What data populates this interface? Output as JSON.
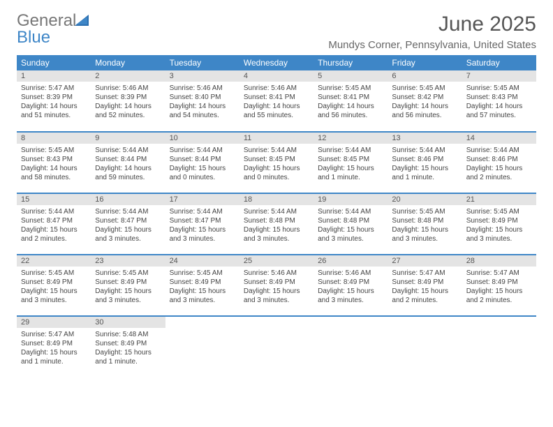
{
  "brand": {
    "part1": "General",
    "part2": "Blue"
  },
  "title": "June 2025",
  "location": "Mundys Corner, Pennsylvania, United States",
  "colors": {
    "header_bg": "#3e86c7",
    "header_fg": "#ffffff",
    "daynum_bg": "#e4e4e4",
    "row_divider": "#3e86c7",
    "text": "#444444"
  },
  "columns": [
    "Sunday",
    "Monday",
    "Tuesday",
    "Wednesday",
    "Thursday",
    "Friday",
    "Saturday"
  ],
  "weeks": [
    [
      {
        "n": "1",
        "sr": "5:47 AM",
        "ss": "8:39 PM",
        "dl": "14 hours and 51 minutes."
      },
      {
        "n": "2",
        "sr": "5:46 AM",
        "ss": "8:39 PM",
        "dl": "14 hours and 52 minutes."
      },
      {
        "n": "3",
        "sr": "5:46 AM",
        "ss": "8:40 PM",
        "dl": "14 hours and 54 minutes."
      },
      {
        "n": "4",
        "sr": "5:46 AM",
        "ss": "8:41 PM",
        "dl": "14 hours and 55 minutes."
      },
      {
        "n": "5",
        "sr": "5:45 AM",
        "ss": "8:41 PM",
        "dl": "14 hours and 56 minutes."
      },
      {
        "n": "6",
        "sr": "5:45 AM",
        "ss": "8:42 PM",
        "dl": "14 hours and 56 minutes."
      },
      {
        "n": "7",
        "sr": "5:45 AM",
        "ss": "8:43 PM",
        "dl": "14 hours and 57 minutes."
      }
    ],
    [
      {
        "n": "8",
        "sr": "5:45 AM",
        "ss": "8:43 PM",
        "dl": "14 hours and 58 minutes."
      },
      {
        "n": "9",
        "sr": "5:44 AM",
        "ss": "8:44 PM",
        "dl": "14 hours and 59 minutes."
      },
      {
        "n": "10",
        "sr": "5:44 AM",
        "ss": "8:44 PM",
        "dl": "15 hours and 0 minutes."
      },
      {
        "n": "11",
        "sr": "5:44 AM",
        "ss": "8:45 PM",
        "dl": "15 hours and 0 minutes."
      },
      {
        "n": "12",
        "sr": "5:44 AM",
        "ss": "8:45 PM",
        "dl": "15 hours and 1 minute."
      },
      {
        "n": "13",
        "sr": "5:44 AM",
        "ss": "8:46 PM",
        "dl": "15 hours and 1 minute."
      },
      {
        "n": "14",
        "sr": "5:44 AM",
        "ss": "8:46 PM",
        "dl": "15 hours and 2 minutes."
      }
    ],
    [
      {
        "n": "15",
        "sr": "5:44 AM",
        "ss": "8:47 PM",
        "dl": "15 hours and 2 minutes."
      },
      {
        "n": "16",
        "sr": "5:44 AM",
        "ss": "8:47 PM",
        "dl": "15 hours and 3 minutes."
      },
      {
        "n": "17",
        "sr": "5:44 AM",
        "ss": "8:47 PM",
        "dl": "15 hours and 3 minutes."
      },
      {
        "n": "18",
        "sr": "5:44 AM",
        "ss": "8:48 PM",
        "dl": "15 hours and 3 minutes."
      },
      {
        "n": "19",
        "sr": "5:44 AM",
        "ss": "8:48 PM",
        "dl": "15 hours and 3 minutes."
      },
      {
        "n": "20",
        "sr": "5:45 AM",
        "ss": "8:48 PM",
        "dl": "15 hours and 3 minutes."
      },
      {
        "n": "21",
        "sr": "5:45 AM",
        "ss": "8:49 PM",
        "dl": "15 hours and 3 minutes."
      }
    ],
    [
      {
        "n": "22",
        "sr": "5:45 AM",
        "ss": "8:49 PM",
        "dl": "15 hours and 3 minutes."
      },
      {
        "n": "23",
        "sr": "5:45 AM",
        "ss": "8:49 PM",
        "dl": "15 hours and 3 minutes."
      },
      {
        "n": "24",
        "sr": "5:45 AM",
        "ss": "8:49 PM",
        "dl": "15 hours and 3 minutes."
      },
      {
        "n": "25",
        "sr": "5:46 AM",
        "ss": "8:49 PM",
        "dl": "15 hours and 3 minutes."
      },
      {
        "n": "26",
        "sr": "5:46 AM",
        "ss": "8:49 PM",
        "dl": "15 hours and 3 minutes."
      },
      {
        "n": "27",
        "sr": "5:47 AM",
        "ss": "8:49 PM",
        "dl": "15 hours and 2 minutes."
      },
      {
        "n": "28",
        "sr": "5:47 AM",
        "ss": "8:49 PM",
        "dl": "15 hours and 2 minutes."
      }
    ],
    [
      {
        "n": "29",
        "sr": "5:47 AM",
        "ss": "8:49 PM",
        "dl": "15 hours and 1 minute."
      },
      {
        "n": "30",
        "sr": "5:48 AM",
        "ss": "8:49 PM",
        "dl": "15 hours and 1 minute."
      },
      null,
      null,
      null,
      null,
      null
    ]
  ],
  "labels": {
    "sunrise": "Sunrise:",
    "sunset": "Sunset:",
    "daylight": "Daylight:"
  }
}
